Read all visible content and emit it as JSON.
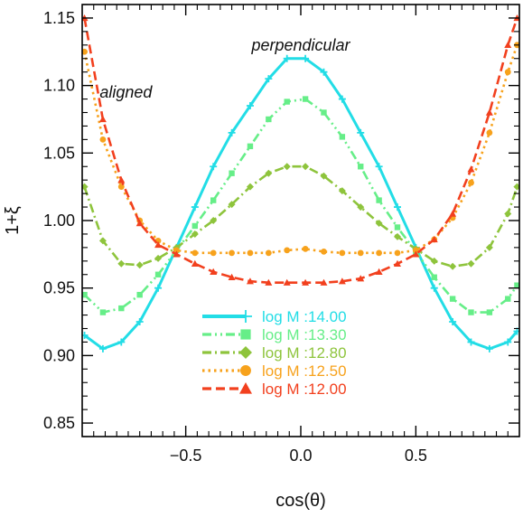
{
  "chart_data": {
    "type": "line",
    "title": "",
    "xlabel": "cos(θ)",
    "ylabel": "1+ξ",
    "xlim": [
      -0.95,
      0.95
    ],
    "ylim": [
      0.84,
      1.16
    ],
    "x_ticks": [
      -0.5,
      0.0,
      0.5
    ],
    "x_tick_labels": [
      "−0.5",
      "0.0",
      "0.5"
    ],
    "y_ticks": [
      0.85,
      0.9,
      0.95,
      1.0,
      1.05,
      1.1,
      1.15
    ],
    "y_tick_labels": [
      "0.85",
      "0.90",
      "0.95",
      "1.00",
      "1.05",
      "1.10",
      "1.15"
    ],
    "grid": false,
    "legend_position": "lower-center",
    "annotations": [
      {
        "text": "perpendicular",
        "x": 0.0,
        "y": 1.13
      },
      {
        "text": "aligned",
        "x": -0.76,
        "y": 1.095
      }
    ],
    "x": [
      -0.94,
      -0.86,
      -0.78,
      -0.7,
      -0.62,
      -0.54,
      -0.46,
      -0.38,
      -0.3,
      -0.22,
      -0.14,
      -0.06,
      0.02,
      0.1,
      0.18,
      0.26,
      0.34,
      0.42,
      0.5,
      0.58,
      0.66,
      0.74,
      0.82,
      0.9,
      0.94
    ],
    "series": [
      {
        "name": "log M :14.00",
        "color": "#22dde6",
        "dash": "solid",
        "marker": "plus",
        "values": [
          0.915,
          0.905,
          0.91,
          0.925,
          0.95,
          0.98,
          1.01,
          1.04,
          1.065,
          1.085,
          1.105,
          1.12,
          1.12,
          1.11,
          1.09,
          1.065,
          1.04,
          1.01,
          0.98,
          0.95,
          0.925,
          0.91,
          0.905,
          0.91,
          0.918
        ]
      },
      {
        "name": "log M :13.30",
        "color": "#66ee88",
        "dash": "dash-dot-dot",
        "marker": "square",
        "values": [
          0.945,
          0.932,
          0.935,
          0.945,
          0.96,
          0.978,
          0.996,
          1.015,
          1.035,
          1.055,
          1.075,
          1.088,
          1.09,
          1.08,
          1.062,
          1.04,
          1.015,
          0.995,
          0.977,
          0.958,
          0.942,
          0.932,
          0.932,
          0.942,
          0.952
        ]
      },
      {
        "name": "log M :12.80",
        "color": "#8ec43c",
        "dash": "dash-dot",
        "marker": "diamond",
        "values": [
          1.025,
          0.985,
          0.968,
          0.967,
          0.972,
          0.98,
          0.99,
          1.0,
          1.012,
          1.025,
          1.035,
          1.04,
          1.04,
          1.033,
          1.022,
          1.01,
          0.998,
          0.988,
          0.979,
          0.97,
          0.966,
          0.968,
          0.98,
          1.005,
          1.025
        ]
      },
      {
        "name": "log M :12.50",
        "color": "#f7a21c",
        "dash": "dot",
        "marker": "circle",
        "values": [
          1.125,
          1.06,
          1.025,
          1.0,
          0.985,
          0.978,
          0.976,
          0.976,
          0.976,
          0.976,
          0.976,
          0.978,
          0.979,
          0.977,
          0.976,
          0.976,
          0.976,
          0.976,
          0.978,
          0.986,
          1.002,
          1.028,
          1.065,
          1.11,
          1.13
        ]
      },
      {
        "name": "log M :12.00",
        "color": "#f2401e",
        "dash": "dash",
        "marker": "triangle",
        "values": [
          1.15,
          1.075,
          1.03,
          0.998,
          0.982,
          0.975,
          0.968,
          0.962,
          0.958,
          0.955,
          0.954,
          0.954,
          0.954,
          0.954,
          0.955,
          0.957,
          0.962,
          0.968,
          0.975,
          0.986,
          1.005,
          1.038,
          1.08,
          1.13,
          1.15
        ]
      }
    ]
  }
}
